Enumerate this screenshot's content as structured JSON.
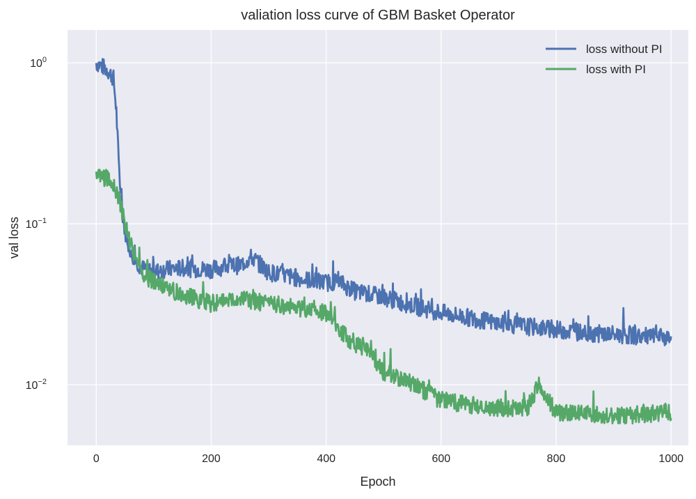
{
  "chart_data": {
    "type": "line",
    "title": "valiation loss curve of GBM Basket Operator",
    "xlabel": "Epoch",
    "ylabel": "val loss",
    "xlim": [
      -50,
      1030
    ],
    "ylim": [
      0.0042,
      1.6
    ],
    "yscale": "log",
    "grid": true,
    "legend_position": "top-right",
    "x_ticks": [
      0,
      200,
      400,
      600,
      800,
      1000
    ],
    "y_ticks": [
      {
        "value": 1,
        "base": "10",
        "exp": "0"
      },
      {
        "value": 0.1,
        "base": "10",
        "exp": "−1"
      },
      {
        "value": 0.01,
        "base": "10",
        "exp": "−2"
      }
    ],
    "background_color": "#EAEAF2",
    "grid_color": "#FFFFFF",
    "series": [
      {
        "name": "loss without PI",
        "color": "#4C72B0",
        "x": [
          0,
          10,
          20,
          30,
          35,
          40,
          45,
          50,
          60,
          70,
          80,
          100,
          120,
          150,
          200,
          230,
          250,
          270,
          280,
          300,
          350,
          400,
          420,
          450,
          500,
          550,
          600,
          650,
          700,
          750,
          800,
          850,
          900,
          950,
          1000
        ],
        "y": [
          1.0,
          0.95,
          0.9,
          0.8,
          0.5,
          0.2,
          0.12,
          0.09,
          0.068,
          0.058,
          0.053,
          0.05,
          0.052,
          0.053,
          0.052,
          0.055,
          0.055,
          0.062,
          0.058,
          0.05,
          0.046,
          0.043,
          0.044,
          0.038,
          0.035,
          0.031,
          0.028,
          0.026,
          0.024,
          0.023,
          0.022,
          0.021,
          0.0205,
          0.02,
          0.0195
        ]
      },
      {
        "name": "loss with PI",
        "color": "#55A868",
        "x": [
          0,
          5,
          20,
          30,
          40,
          50,
          60,
          70,
          80,
          100,
          150,
          200,
          250,
          300,
          350,
          400,
          420,
          450,
          470,
          500,
          550,
          600,
          650,
          700,
          750,
          770,
          780,
          800,
          850,
          900,
          950,
          1000
        ],
        "y": [
          0.2,
          0.2,
          0.19,
          0.18,
          0.14,
          0.1,
          0.075,
          0.06,
          0.05,
          0.043,
          0.036,
          0.032,
          0.034,
          0.032,
          0.03,
          0.028,
          0.022,
          0.018,
          0.017,
          0.012,
          0.01,
          0.008,
          0.0075,
          0.0072,
          0.0072,
          0.01,
          0.0085,
          0.0068,
          0.0066,
          0.0065,
          0.0065,
          0.0068
        ]
      }
    ]
  }
}
